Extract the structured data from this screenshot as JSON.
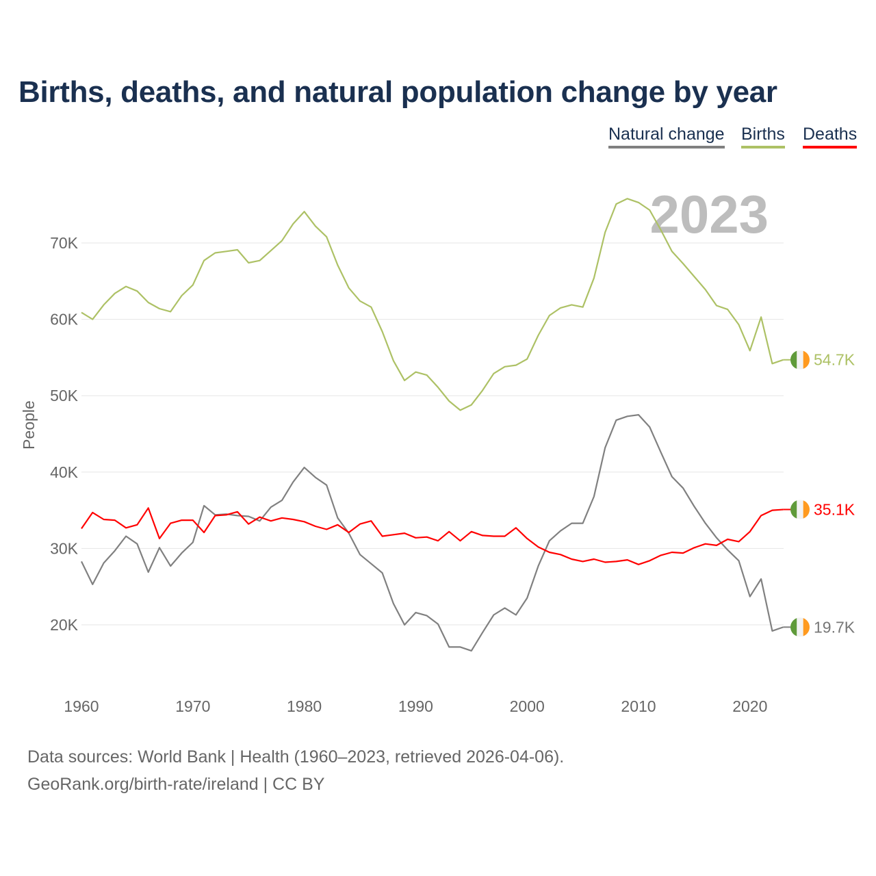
{
  "title": "Births, deaths, and natural population change by year",
  "legend": [
    {
      "label": "Natural change",
      "color": "#808080"
    },
    {
      "label": "Births",
      "color": "#adc165"
    },
    {
      "label": "Deaths",
      "color": "#ff0000"
    }
  ],
  "year_label": "2023",
  "footer": {
    "line1": "Data sources: World Bank | Health (1960–2023, retrieved 2026-04-06).",
    "line2": "GeoRank.org/birth-rate/ireland | CC BY"
  },
  "chart_data": {
    "type": "line",
    "title": "Births, deaths, and natural population change by year",
    "xlabel": "",
    "ylabel": "People",
    "xlim": [
      1960,
      2023
    ],
    "ylim": [
      12000,
      78000
    ],
    "grid": true,
    "legend_position": "top-right",
    "x_ticks": [
      1960,
      1970,
      1980,
      1990,
      2000,
      2010,
      2020
    ],
    "y_ticks": [
      20000,
      30000,
      40000,
      50000,
      60000,
      70000
    ],
    "y_tick_labels": [
      "20K",
      "30K",
      "40K",
      "50K",
      "60K",
      "70K"
    ],
    "x_start": 1960,
    "series": [
      {
        "name": "Natural change",
        "color": "#808080",
        "end_label": "19.7K",
        "values": [
          28.3,
          25.3,
          28.1,
          29.7,
          31.6,
          30.6,
          26.9,
          30.1,
          27.7,
          29.4,
          30.8,
          35.6,
          34.4,
          34.5,
          34.3,
          34.2,
          33.6,
          35.4,
          36.3,
          38.7,
          40.6,
          39.3,
          38.3,
          34.0,
          32.0,
          29.2,
          28.0,
          26.8,
          22.8,
          20.0,
          21.6,
          21.2,
          20.1,
          17.1,
          17.1,
          16.6,
          19.0,
          21.3,
          22.2,
          21.3,
          23.5,
          27.7,
          31.0,
          32.3,
          33.3,
          33.3,
          36.8,
          43.2,
          46.8,
          47.3,
          47.5,
          45.9,
          42.6,
          39.4,
          37.9,
          35.5,
          33.3,
          31.4,
          29.8,
          28.4,
          23.7,
          26.0,
          19.2,
          19.7
        ]
      },
      {
        "name": "Births",
        "color": "#adc165",
        "end_label": "54.7K",
        "values": [
          60.9,
          60.0,
          61.9,
          63.4,
          64.3,
          63.7,
          62.2,
          61.4,
          61.0,
          63.1,
          64.5,
          67.7,
          68.7,
          68.9,
          69.1,
          67.4,
          67.7,
          69.0,
          70.3,
          72.5,
          74.1,
          72.2,
          70.8,
          67.1,
          64.1,
          62.4,
          61.6,
          58.4,
          54.6,
          52.0,
          53.1,
          52.7,
          51.1,
          49.3,
          48.1,
          48.8,
          50.7,
          52.9,
          53.8,
          54.0,
          54.8,
          57.9,
          60.5,
          61.5,
          61.9,
          61.6,
          65.4,
          71.4,
          75.1,
          75.8,
          75.3,
          74.3,
          71.7,
          68.9,
          67.3,
          65.6,
          63.9,
          61.8,
          61.3,
          59.3,
          55.9,
          60.3,
          54.2,
          54.7
        ]
      },
      {
        "name": "Deaths",
        "color": "#ff0000",
        "end_label": "35.1K",
        "values": [
          32.6,
          34.7,
          33.8,
          33.7,
          32.7,
          33.1,
          35.3,
          31.3,
          33.3,
          33.7,
          33.7,
          32.1,
          34.3,
          34.4,
          34.8,
          33.2,
          34.1,
          33.6,
          34.0,
          33.8,
          33.5,
          32.9,
          32.5,
          33.1,
          32.1,
          33.2,
          33.6,
          31.6,
          31.8,
          32.0,
          31.4,
          31.5,
          31.0,
          32.2,
          31.0,
          32.2,
          31.7,
          31.6,
          31.6,
          32.7,
          31.3,
          30.2,
          29.5,
          29.2,
          28.6,
          28.3,
          28.6,
          28.2,
          28.3,
          28.5,
          27.9,
          28.4,
          29.1,
          29.5,
          29.4,
          30.1,
          30.6,
          30.4,
          31.2,
          30.9,
          32.2,
          34.3,
          35.0,
          35.1
        ]
      }
    ],
    "value_unit": "thousands"
  }
}
